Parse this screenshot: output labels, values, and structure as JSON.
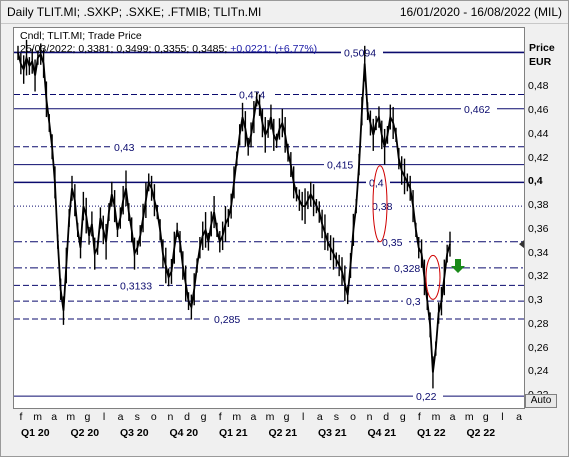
{
  "header": {
    "title": "Daily TLIT.MI; .SXKP; .SXKE; .FTMIB; TLITn.MI",
    "date_range": "16/01/2020 - 16/08/2022 (MIL)"
  },
  "legend": {
    "line1": "Cndl; TLIT.MI; Trade Price",
    "line2_prefix": "25/03/2022; 0,3381; 0,3499; 0,3355; 0,3485; ",
    "line2_change": "+0,0221; (+6,77%)"
  },
  "axis": {
    "y_title": "Price",
    "y_unit": "EUR",
    "auto_button": "Auto"
  },
  "colors": {
    "candle": "#000000",
    "level_line": "#0b0b6e",
    "annotation_ellipse": "#d00000",
    "arrow": "#1a8a1a"
  },
  "chart_data": {
    "type": "candlestick",
    "title": "",
    "ylabel": "Price EUR",
    "ylim": [
      0.21,
      0.53
    ],
    "y_ticks": [
      "0,5094",
      "0,48",
      "0,46",
      "0,44",
      "0,42",
      "0,4",
      "0,38",
      "0,36",
      "0,34",
      "0,32",
      "0,3",
      "0,28",
      "0,26",
      "0,24",
      "0,22"
    ],
    "x_months": [
      "f",
      "m",
      "a",
      "m",
      "g",
      "l",
      "a",
      "s",
      "o",
      "n",
      "d",
      "g",
      "f",
      "m",
      "a",
      "m",
      "g",
      "l",
      "a",
      "s",
      "o",
      "n",
      "d",
      "g",
      "f",
      "m",
      "a",
      "m",
      "g",
      "l",
      "a"
    ],
    "x_quarters": [
      "Q1 20",
      "Q2 20",
      "Q3 20",
      "Q4 20",
      "Q1 21",
      "Q2 21",
      "Q3 21",
      "Q4 21",
      "Q1 22",
      "Q2 22"
    ],
    "series": [
      {
        "name": "TLIT.MI",
        "points": [
          [
            0,
            0.509
          ],
          [
            1,
            0.5
          ],
          [
            2,
            0.495
          ],
          [
            3,
            0.505
          ],
          [
            4,
            0.498
          ],
          [
            5,
            0.502
          ],
          [
            6,
            0.49
          ],
          [
            7,
            0.505
          ],
          [
            8,
            0.508
          ],
          [
            9,
            0.5
          ],
          [
            10,
            0.47
          ],
          [
            11,
            0.45
          ],
          [
            12,
            0.43
          ],
          [
            13,
            0.4
          ],
          [
            14,
            0.35
          ],
          [
            15,
            0.31
          ],
          [
            16,
            0.292
          ],
          [
            17,
            0.33
          ],
          [
            18,
            0.37
          ],
          [
            19,
            0.395
          ],
          [
            20,
            0.385
          ],
          [
            21,
            0.36
          ],
          [
            22,
            0.345
          ],
          [
            23,
            0.38
          ],
          [
            24,
            0.372
          ],
          [
            25,
            0.355
          ],
          [
            26,
            0.365
          ],
          [
            27,
            0.34
          ],
          [
            28,
            0.345
          ],
          [
            29,
            0.37
          ],
          [
            30,
            0.36
          ],
          [
            31,
            0.35
          ],
          [
            32,
            0.375
          ],
          [
            33,
            0.39
          ],
          [
            34,
            0.38
          ],
          [
            35,
            0.36
          ],
          [
            36,
            0.37
          ],
          [
            37,
            0.385
          ],
          [
            38,
            0.395
          ],
          [
            39,
            0.375
          ],
          [
            40,
            0.36
          ],
          [
            41,
            0.34
          ],
          [
            42,
            0.345
          ],
          [
            43,
            0.355
          ],
          [
            44,
            0.37
          ],
          [
            45,
            0.385
          ],
          [
            46,
            0.4
          ],
          [
            47,
            0.395
          ],
          [
            48,
            0.385
          ],
          [
            49,
            0.375
          ],
          [
            50,
            0.36
          ],
          [
            51,
            0.34
          ],
          [
            52,
            0.33
          ],
          [
            53,
            0.32
          ],
          [
            54,
            0.325
          ],
          [
            55,
            0.345
          ],
          [
            56,
            0.36
          ],
          [
            57,
            0.35
          ],
          [
            58,
            0.33
          ],
          [
            59,
            0.315
          ],
          [
            60,
            0.3
          ],
          [
            61,
            0.295
          ],
          [
            62,
            0.31
          ],
          [
            63,
            0.33
          ],
          [
            64,
            0.345
          ],
          [
            65,
            0.355
          ],
          [
            66,
            0.36
          ],
          [
            67,
            0.35
          ],
          [
            68,
            0.365
          ],
          [
            69,
            0.375
          ],
          [
            70,
            0.36
          ],
          [
            71,
            0.35
          ],
          [
            72,
            0.355
          ],
          [
            73,
            0.365
          ],
          [
            74,
            0.37
          ],
          [
            75,
            0.38
          ],
          [
            76,
            0.4
          ],
          [
            77,
            0.42
          ],
          [
            78,
            0.44
          ],
          [
            79,
            0.455
          ],
          [
            80,
            0.445
          ],
          [
            81,
            0.43
          ],
          [
            82,
            0.44
          ],
          [
            83,
            0.455
          ],
          [
            84,
            0.47
          ],
          [
            85,
            0.465
          ],
          [
            86,
            0.45
          ],
          [
            87,
            0.44
          ],
          [
            88,
            0.445
          ],
          [
            89,
            0.455
          ],
          [
            90,
            0.44
          ],
          [
            91,
            0.435
          ],
          [
            92,
            0.445
          ],
          [
            93,
            0.45
          ],
          [
            94,
            0.44
          ],
          [
            95,
            0.425
          ],
          [
            96,
            0.415
          ],
          [
            97,
            0.4
          ],
          [
            98,
            0.39
          ],
          [
            99,
            0.385
          ],
          [
            100,
            0.38
          ],
          [
            101,
            0.38
          ],
          [
            102,
            0.385
          ],
          [
            103,
            0.39
          ],
          [
            104,
            0.385
          ],
          [
            105,
            0.38
          ],
          [
            106,
            0.375
          ],
          [
            107,
            0.365
          ],
          [
            108,
            0.358
          ],
          [
            109,
            0.35
          ],
          [
            110,
            0.345
          ],
          [
            111,
            0.34
          ],
          [
            112,
            0.335
          ],
          [
            113,
            0.33
          ],
          [
            114,
            0.325
          ],
          [
            115,
            0.315
          ],
          [
            116,
            0.305
          ],
          [
            117,
            0.33
          ],
          [
            118,
            0.36
          ],
          [
            119,
            0.38
          ],
          [
            120,
            0.415
          ],
          [
            121,
            0.46
          ],
          [
            122,
            0.5
          ],
          [
            123,
            0.46
          ],
          [
            124,
            0.45
          ],
          [
            125,
            0.44
          ],
          [
            126,
            0.45
          ],
          [
            127,
            0.455
          ],
          [
            128,
            0.44
          ],
          [
            129,
            0.43
          ],
          [
            130,
            0.44
          ],
          [
            131,
            0.455
          ],
          [
            132,
            0.45
          ],
          [
            133,
            0.44
          ],
          [
            134,
            0.42
          ],
          [
            135,
            0.41
          ],
          [
            136,
            0.405
          ],
          [
            137,
            0.4
          ],
          [
            138,
            0.395
          ],
          [
            139,
            0.38
          ],
          [
            140,
            0.36
          ],
          [
            141,
            0.345
          ],
          [
            142,
            0.34
          ],
          [
            143,
            0.32
          ],
          [
            144,
            0.3
          ],
          [
            145,
            0.28
          ],
          [
            146,
            0.24
          ],
          [
            147,
            0.26
          ],
          [
            148,
            0.29
          ],
          [
            149,
            0.3
          ],
          [
            150,
            0.32
          ],
          [
            151,
            0.34
          ],
          [
            152,
            0.348
          ]
        ]
      }
    ],
    "levels": [
      {
        "value": 0.5094,
        "label": "0,5094",
        "style": "solid"
      },
      {
        "value": 0.474,
        "label": "0,474",
        "style": "dashed"
      },
      {
        "value": 0.462,
        "label": "0,462",
        "style": "solid"
      },
      {
        "value": 0.43,
        "label": "0,43",
        "style": "dashed"
      },
      {
        "value": 0.415,
        "label": "0,415",
        "style": "solid"
      },
      {
        "value": 0.4,
        "label": "0,4",
        "style": "solid"
      },
      {
        "value": 0.38,
        "label": "0,38",
        "style": "dotted"
      },
      {
        "value": 0.35,
        "label": "0,35",
        "style": "dashdot"
      },
      {
        "value": 0.328,
        "label": "0,328",
        "style": "dashdot"
      },
      {
        "value": 0.3133,
        "label": "0,3133",
        "style": "dashed"
      },
      {
        "value": 0.3,
        "label": "0,3",
        "style": "dashed"
      },
      {
        "value": 0.285,
        "label": "0,285",
        "style": "dashed"
      },
      {
        "value": 0.22,
        "label": "0,22",
        "style": "solid"
      }
    ]
  }
}
